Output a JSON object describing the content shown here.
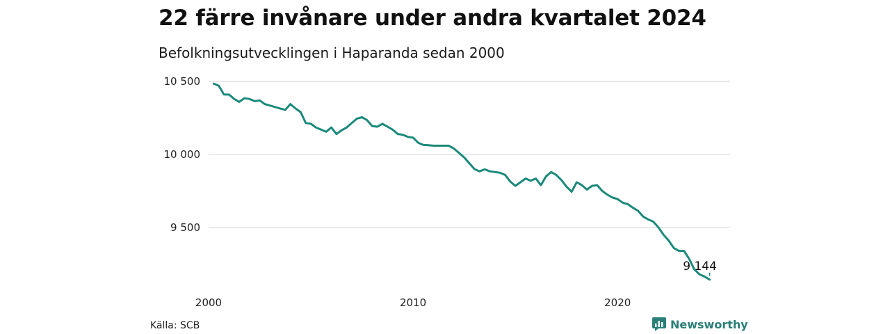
{
  "header": {
    "title": "22 färre invånare under andra kvartalet 2024",
    "subtitle": "Befolkningsutvecklingen i Haparanda sedan 2000"
  },
  "footer": {
    "source": "Källa: SCB",
    "brand": "Newsworthy",
    "brand_icon": "newsworthy-chart-icon"
  },
  "colors": {
    "line": "#1b8a7a",
    "grid": "#dcdcdc",
    "brand": "#2a7f76"
  },
  "chart_data": {
    "type": "line",
    "title": "22 färre invånare under andra kvartalet 2024",
    "subtitle": "Befolkningsutvecklingen i Haparanda sedan 2000",
    "xlabel": "",
    "ylabel": "",
    "grid": true,
    "yticks": [
      {
        "value": 9500,
        "label": "9 500"
      },
      {
        "value": 10000,
        "label": "10 000"
      },
      {
        "value": 10500,
        "label": "10 500"
      }
    ],
    "xticks": [
      {
        "value": 2000,
        "label": "2000"
      },
      {
        "value": 2010,
        "label": "2010"
      },
      {
        "value": 2020,
        "label": "2020"
      }
    ],
    "end_label": "9 144",
    "x": [
      2000.25,
      2000.5,
      2000.75,
      2001,
      2001.25,
      2001.5,
      2001.75,
      2002,
      2002.25,
      2002.5,
      2002.75,
      2003,
      2003.25,
      2003.5,
      2003.75,
      2004,
      2004.25,
      2004.5,
      2004.75,
      2005,
      2005.25,
      2005.5,
      2005.75,
      2006,
      2006.25,
      2006.5,
      2006.75,
      2007,
      2007.25,
      2007.5,
      2007.75,
      2008,
      2008.25,
      2008.5,
      2008.75,
      2009,
      2009.25,
      2009.5,
      2009.75,
      2010,
      2010.25,
      2010.5,
      2010.75,
      2011,
      2011.25,
      2011.5,
      2011.75,
      2012,
      2012.25,
      2012.5,
      2012.75,
      2013,
      2013.25,
      2013.5,
      2013.75,
      2014,
      2014.25,
      2014.5,
      2014.75,
      2015,
      2015.25,
      2015.5,
      2015.75,
      2016,
      2016.25,
      2016.5,
      2016.75,
      2017,
      2017.25,
      2017.5,
      2017.75,
      2018,
      2018.25,
      2018.5,
      2018.75,
      2019,
      2019.25,
      2019.5,
      2019.75,
      2020,
      2020.25,
      2020.5,
      2020.75,
      2021,
      2021.25,
      2021.5,
      2021.75,
      2022,
      2022.25,
      2022.5,
      2022.75,
      2023,
      2023.25,
      2023.5,
      2023.75,
      2024,
      2024.25,
      2024.5
    ],
    "series": [
      {
        "values": [
          10485,
          10470,
          10410,
          10410,
          10380,
          10360,
          10385,
          10380,
          10365,
          10370,
          10345,
          10335,
          10325,
          10315,
          10305,
          10345,
          10315,
          10290,
          10215,
          10210,
          10185,
          10170,
          10155,
          10185,
          10140,
          10165,
          10185,
          10215,
          10245,
          10255,
          10235,
          10195,
          10190,
          10210,
          10190,
          10170,
          10140,
          10135,
          10120,
          10115,
          10080,
          10065,
          10063,
          10060,
          10060,
          10060,
          10060,
          10040,
          10010,
          9980,
          9940,
          9900,
          9885,
          9898,
          9885,
          9880,
          9875,
          9860,
          9815,
          9785,
          9810,
          9835,
          9820,
          9835,
          9790,
          9850,
          9880,
          9860,
          9825,
          9780,
          9745,
          9810,
          9790,
          9760,
          9785,
          9790,
          9750,
          9725,
          9705,
          9695,
          9670,
          9660,
          9635,
          9615,
          9575,
          9555,
          9540,
          9500,
          9450,
          9410,
          9360,
          9340,
          9340,
          9285,
          9215,
          9180,
          9165,
          9144
        ]
      }
    ]
  }
}
